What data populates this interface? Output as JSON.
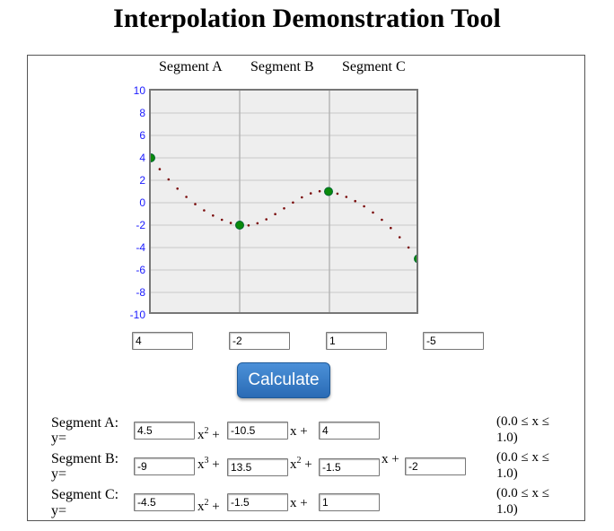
{
  "title": "Interpolation Demonstration Tool",
  "segment_headers": [
    "Segment A",
    "Segment B",
    "Segment C"
  ],
  "y_ticks": [
    "10",
    "8",
    "6",
    "4",
    "2",
    "0",
    "-2",
    "-4",
    "-6",
    "-8",
    "-10"
  ],
  "point_inputs": [
    "4",
    "-2",
    "1",
    "-5"
  ],
  "calculate_label": "Calculate",
  "colors": {
    "point_fill": "#0b8a0b",
    "curve_dots": "#7a0a0a",
    "button": "#3a7fcc"
  },
  "equations": {
    "seg_a": {
      "label": "Segment A:",
      "yeq": "y=",
      "c2": "4.5",
      "c1": "-10.5",
      "c0": "4",
      "t2": "x",
      "e2": "2",
      "plus": "+",
      "t1": "x +",
      "range1": "(0.0 ≤ x ≤",
      "range2": "1.0)"
    },
    "seg_b": {
      "label": "Segment B:",
      "yeq": "y=",
      "c3": "-9",
      "c2": "13.5",
      "c1": "-1.5",
      "c0": "-2",
      "t3": "x",
      "e3": "3",
      "t2": "x",
      "e2": "2",
      "plus": "+",
      "t1": "x +",
      "range1": "(0.0 ≤ x ≤",
      "range2": "1.0)"
    },
    "seg_c": {
      "label": "Segment C:",
      "yeq": "y=",
      "c2": "-4.5",
      "c1": "-1.5",
      "c0": "1",
      "t2": "x",
      "e2": "2",
      "plus": "+",
      "t1": "x +",
      "range1": "(0.0 ≤ x ≤",
      "range2": "1.0)"
    }
  }
}
